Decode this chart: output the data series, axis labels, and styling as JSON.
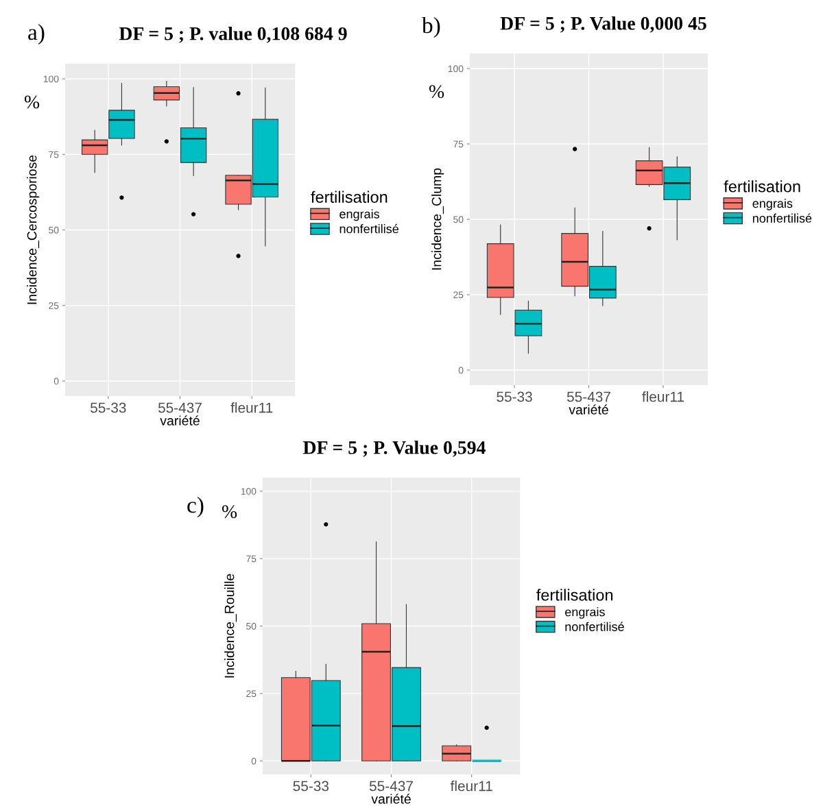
{
  "chart_data": [
    {
      "type": "box",
      "title": "DF = 5 ; P. value 0,108 684 9",
      "xlabel": "variété",
      "ylabel": "Incidence_Cercosporiose",
      "legend_title": "fertilisation",
      "annotations": [
        "a)",
        "%"
      ],
      "categories": [
        "55-33",
        "55-437",
        "fleur11"
      ],
      "ylim": [
        -5,
        105
      ],
      "yticks": [
        0,
        25,
        50,
        75,
        100
      ],
      "grid": true,
      "legend": "right",
      "series": [
        {
          "name": "engrais",
          "color": "#f8766d",
          "boxes": [
            {
              "low": 69,
              "q1": 75,
              "median": 78,
              "q3": 79.8,
              "high": 83
            },
            {
              "low": 91,
              "q1": 93,
              "median": 95.3,
              "q3": 97.4,
              "high": 99.2,
              "outliers": [
                79.3
              ]
            },
            {
              "low": 56.7,
              "q1": 58.5,
              "median": 66.4,
              "q3": 68.1,
              "high": 68.1,
              "outliers": [
                95.2,
                41.4
              ]
            }
          ]
        },
        {
          "name": "nonfertilisé",
          "color": "#00bfc4",
          "boxes": [
            {
              "low": 78.1,
              "q1": 80.3,
              "median": 86.4,
              "q3": 89.6,
              "high": 98.5,
              "outliers": [
                60.7
              ]
            },
            {
              "low": 68,
              "q1": 72.3,
              "median": 80.2,
              "q3": 83.8,
              "high": 97.1,
              "outliers": [
                55.2
              ]
            },
            {
              "low": 44.7,
              "q1": 60.9,
              "median": 65.2,
              "q3": 86.6,
              "high": 97
            }
          ]
        }
      ]
    },
    {
      "type": "box",
      "title": "DF = 5 ; P. Value 0,000 45",
      "xlabel": "variété",
      "ylabel": "Incidence_Clump",
      "legend_title": "fertilisation",
      "annotations": [
        "b)",
        "%"
      ],
      "categories": [
        "55-33",
        "55-437",
        "fleur11"
      ],
      "ylim": [
        -5,
        105
      ],
      "yticks": [
        0,
        25,
        50,
        75,
        100
      ],
      "grid": true,
      "legend": "right",
      "series": [
        {
          "name": "engrais",
          "color": "#f8766d",
          "boxes": [
            {
              "low": 18.4,
              "q1": 24.1,
              "median": 27.4,
              "q3": 41.9,
              "high": 48.1
            },
            {
              "low": 24.6,
              "q1": 27.8,
              "median": 35.9,
              "q3": 45.3,
              "high": 53.8,
              "outliers": [
                73.3
              ]
            },
            {
              "low": 60.9,
              "q1": 61.5,
              "median": 66.2,
              "q3": 69.4,
              "high": 73.8,
              "outliers": [
                47
              ]
            }
          ]
        },
        {
          "name": "nonfertilisé",
          "color": "#00bfc4",
          "boxes": [
            {
              "low": 5.6,
              "q1": 11.4,
              "median": 15.4,
              "q3": 19.9,
              "high": 22.9
            },
            {
              "low": 21.4,
              "q1": 23.9,
              "median": 26.7,
              "q3": 34.4,
              "high": 46
            },
            {
              "low": 43.2,
              "q1": 56.5,
              "median": 62,
              "q3": 67.3,
              "high": 70.7
            }
          ]
        }
      ]
    },
    {
      "type": "box",
      "title": "DF = 5 ; P. Value 0,594",
      "xlabel": "variété",
      "ylabel": "Incidence_Rouille",
      "legend_title": "fertilisation",
      "annotations": [
        "c)",
        "%"
      ],
      "categories": [
        "55-33",
        "55-437",
        "fleur11"
      ],
      "ylim": [
        -5,
        105
      ],
      "yticks": [
        0,
        25,
        50,
        75,
        100
      ],
      "grid": true,
      "legend": "right",
      "series": [
        {
          "name": "engrais",
          "color": "#f8766d",
          "boxes": [
            {
              "low": 0,
              "q1": 0,
              "median": 0,
              "q3": 30.9,
              "high": 33.2
            },
            {
              "low": 0,
              "q1": 0,
              "median": 40.5,
              "q3": 50.9,
              "high": 81.2
            },
            {
              "low": 0,
              "q1": 0,
              "median": 2.7,
              "q3": 5.6,
              "high": 6
            }
          ]
        },
        {
          "name": "nonfertilisé",
          "color": "#00bfc4",
          "boxes": [
            {
              "low": 0,
              "q1": 0,
              "median": 13.1,
              "q3": 29.8,
              "high": 35.8,
              "outliers": [
                87.7
              ]
            },
            {
              "low": 0,
              "q1": 0,
              "median": 12.9,
              "q3": 34.6,
              "high": 58
            },
            {
              "low": 0,
              "q1": 0,
              "median": 0,
              "q3": 0,
              "high": 0,
              "outliers": [
                12.3
              ]
            }
          ]
        }
      ]
    }
  ]
}
